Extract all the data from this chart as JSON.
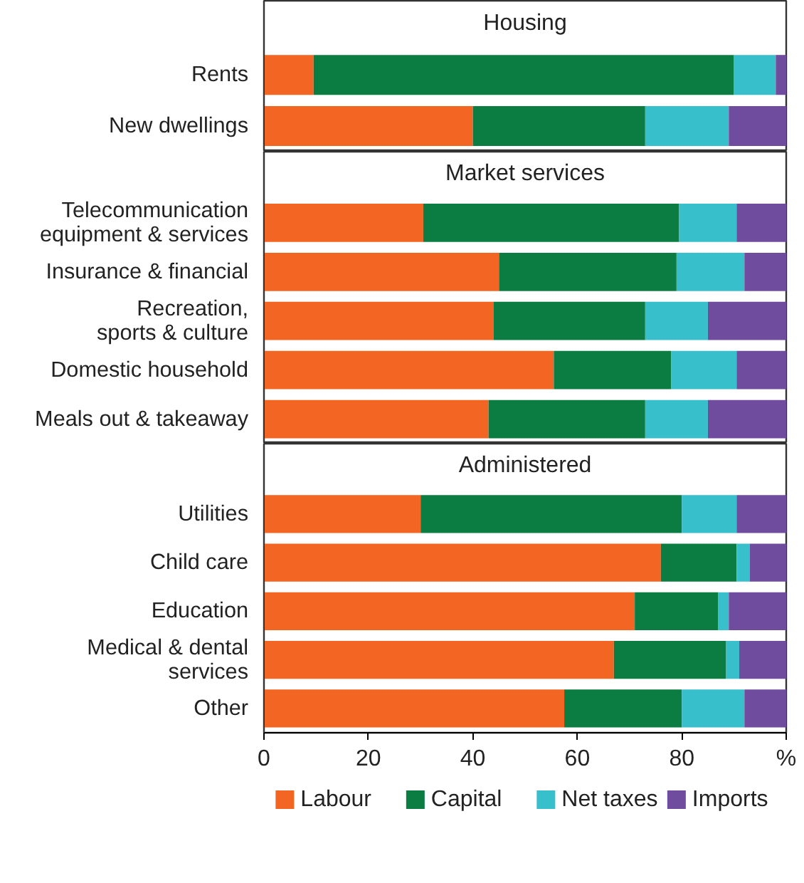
{
  "chart_data": [
    {
      "type": "bar",
      "title": "Housing",
      "orientation": "horizontal",
      "stacked": true,
      "categories": [
        "Rents",
        "New dwellings"
      ],
      "series": [
        {
          "color": "#f26522",
          "values": [
            9.5,
            40
          ]
        },
        {
          "color": "#0b7c42",
          "values": [
            80.5,
            33
          ]
        },
        {
          "color": "#38bfcc",
          "values": [
            8,
            16
          ]
        },
        {
          "color": "#6f4c9e",
          "values": [
            2,
            11
          ]
        }
      ],
      "xlim": [
        0,
        100
      ],
      "tick_labels": "y"
    },
    {
      "type": "bar",
      "title": "Market services",
      "orientation": "horizontal",
      "stacked": true,
      "categories": [
        "Telecommunication\nequipment & services",
        "Insurance & financial",
        "Recreation,\nsports & culture",
        "Domestic household",
        "Meals out & takeaway"
      ],
      "series": [
        {
          "color": "#f26522",
          "values": [
            30.5,
            45,
            44,
            55.5,
            43
          ]
        },
        {
          "color": "#0b7c42",
          "values": [
            49,
            34,
            29,
            22.5,
            30
          ]
        },
        {
          "color": "#38bfcc",
          "values": [
            11,
            13,
            12,
            12.5,
            12
          ]
        },
        {
          "color": "#6f4c9e",
          "values": [
            9.5,
            8,
            15,
            9.5,
            15
          ]
        }
      ],
      "xlim": [
        0,
        100
      ],
      "tick_labels": "y"
    },
    {
      "type": "bar",
      "title": "Administered",
      "orientation": "horizontal",
      "stacked": true,
      "categories": [
        "Utilities",
        "Child care",
        "Education",
        "Medical & dental\nservices",
        "Other"
      ],
      "series": [
        {
          "name": "Labour",
          "color": "#f26522",
          "values": [
            30,
            76,
            71,
            67,
            57.5
          ]
        },
        {
          "name": "Capital",
          "color": "#0b7c42",
          "values": [
            50,
            14.5,
            16,
            21.5,
            22.5
          ]
        },
        {
          "name": "Net taxes",
          "color": "#38bfcc",
          "values": [
            10.5,
            2.5,
            2,
            2.5,
            12
          ]
        },
        {
          "name": "Imports",
          "color": "#6f4c9e",
          "values": [
            9.5,
            7,
            11,
            9,
            8
          ]
        }
      ],
      "xlim": [
        0,
        100
      ],
      "xticks": [
        0,
        20,
        40,
        60,
        80,
        {
          "value": 100,
          "label": "%"
        }
      ],
      "legend": "bottom"
    }
  ]
}
